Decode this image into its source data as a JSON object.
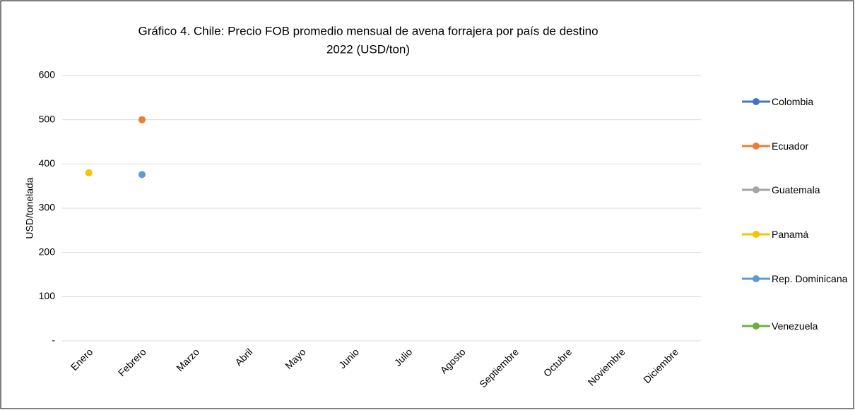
{
  "chart_data": {
    "type": "line",
    "title": "Gráfico 4. Chile: Precio FOB promedio mensual de avena forrajera por país de destino",
    "subtitle": "2022 (USD/ton)",
    "y_label": "USD/tonelada",
    "categories": [
      "Enero",
      "Febrero",
      "Marzo",
      "Abril",
      "Mayo",
      "Junio",
      "Julio",
      "Agosto",
      "Septiembre",
      "Octubre",
      "Noviembre",
      "Diciembre"
    ],
    "series": [
      {
        "name": "Colombia",
        "color": "#4472c4",
        "values": [
          null,
          null,
          null,
          null,
          null,
          null,
          null,
          null,
          null,
          null,
          null,
          null
        ]
      },
      {
        "name": "Ecuador",
        "color": "#ed7d31",
        "values": [
          null,
          500,
          null,
          null,
          null,
          null,
          null,
          null,
          null,
          null,
          null,
          null
        ]
      },
      {
        "name": "Guatemala",
        "color": "#a5a5a5",
        "values": [
          null,
          null,
          null,
          null,
          null,
          null,
          null,
          null,
          null,
          null,
          null,
          null
        ]
      },
      {
        "name": "Panamá",
        "color": "#ffc000",
        "values": [
          380,
          null,
          null,
          null,
          null,
          null,
          null,
          null,
          null,
          null,
          null,
          null
        ]
      },
      {
        "name": "Rep. Dominicana",
        "color": "#5b9bd5",
        "values": [
          null,
          376,
          null,
          null,
          null,
          null,
          null,
          null,
          null,
          null,
          null,
          null
        ]
      },
      {
        "name": "Venezuela",
        "color": "#70ad47",
        "values": [
          null,
          null,
          null,
          null,
          null,
          null,
          null,
          null,
          null,
          null,
          null,
          null
        ]
      }
    ],
    "ylim": [
      0,
      600
    ],
    "yticks": [
      {
        "value": 0,
        "label": "-"
      },
      100,
      200,
      300,
      400,
      500,
      600
    ],
    "grid": true,
    "legend": "right"
  }
}
